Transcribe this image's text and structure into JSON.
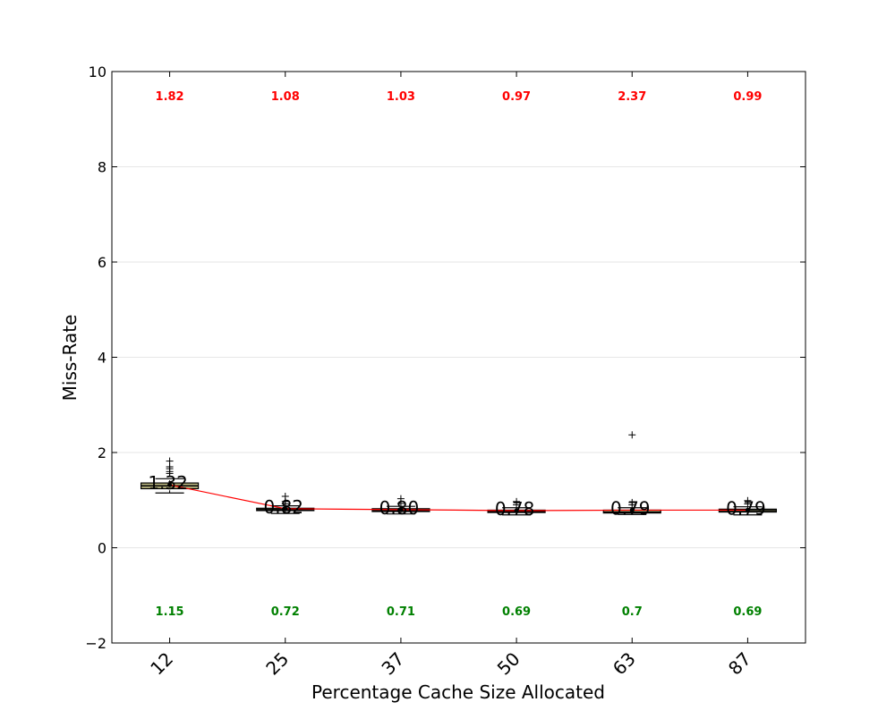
{
  "chart_data": {
    "type": "box",
    "title": "",
    "xlabel": "Percentage Cache Size Allocated",
    "ylabel": "Miss-Rate",
    "ylim": [
      -2,
      10
    ],
    "yticks": [
      -2,
      0,
      2,
      4,
      6,
      8,
      10
    ],
    "ytick_labels": [
      "−2",
      "0",
      "2",
      "4",
      "6",
      "8",
      "10"
    ],
    "categories": [
      "12",
      "25",
      "37",
      "50",
      "63",
      "87"
    ],
    "grid": "horizontal",
    "boxes": [
      {
        "q1": 1.24,
        "median": 1.3,
        "q3": 1.36,
        "whisker_low": 1.15,
        "whisker_high": 1.45,
        "fliers": [
          1.56,
          1.6,
          1.66,
          1.7,
          1.82
        ]
      },
      {
        "q1": 0.78,
        "median": 0.8,
        "q3": 0.83,
        "whisker_low": 0.72,
        "whisker_high": 0.88,
        "fliers": [
          0.92,
          0.97,
          1.08
        ]
      },
      {
        "q1": 0.76,
        "median": 0.78,
        "q3": 0.82,
        "whisker_low": 0.71,
        "whisker_high": 0.87,
        "fliers": [
          0.93,
          1.03
        ]
      },
      {
        "q1": 0.74,
        "median": 0.76,
        "q3": 0.79,
        "whisker_low": 0.69,
        "whisker_high": 0.84,
        "fliers": [
          0.9,
          0.97
        ]
      },
      {
        "q1": 0.73,
        "median": 0.75,
        "q3": 0.79,
        "whisker_low": 0.7,
        "whisker_high": 0.84,
        "fliers": [
          0.9,
          0.95,
          2.37
        ]
      },
      {
        "q1": 0.75,
        "median": 0.78,
        "q3": 0.81,
        "whisker_low": 0.69,
        "whisker_high": 0.86,
        "fliers": [
          0.92,
          0.99
        ]
      }
    ],
    "means": [
      1.32,
      0.82,
      0.8,
      0.78,
      0.79,
      0.79
    ],
    "mean_labels": [
      "1.32",
      "0.82",
      "0.80",
      "0.78",
      "0.79",
      "0.79"
    ],
    "max_values": [
      "1.82",
      "1.08",
      "1.03",
      "0.97",
      "2.37",
      "0.99"
    ],
    "min_values": [
      "1.15",
      "0.72",
      "0.71",
      "0.69",
      "0.7",
      "0.69"
    ],
    "colors": {
      "box_fill": "#b5b27e",
      "box_edge": "#000000",
      "mean_line": "#ff0000",
      "max_label": "#ff0000",
      "min_label": "#008000",
      "grid": "#e6e6e6"
    }
  }
}
